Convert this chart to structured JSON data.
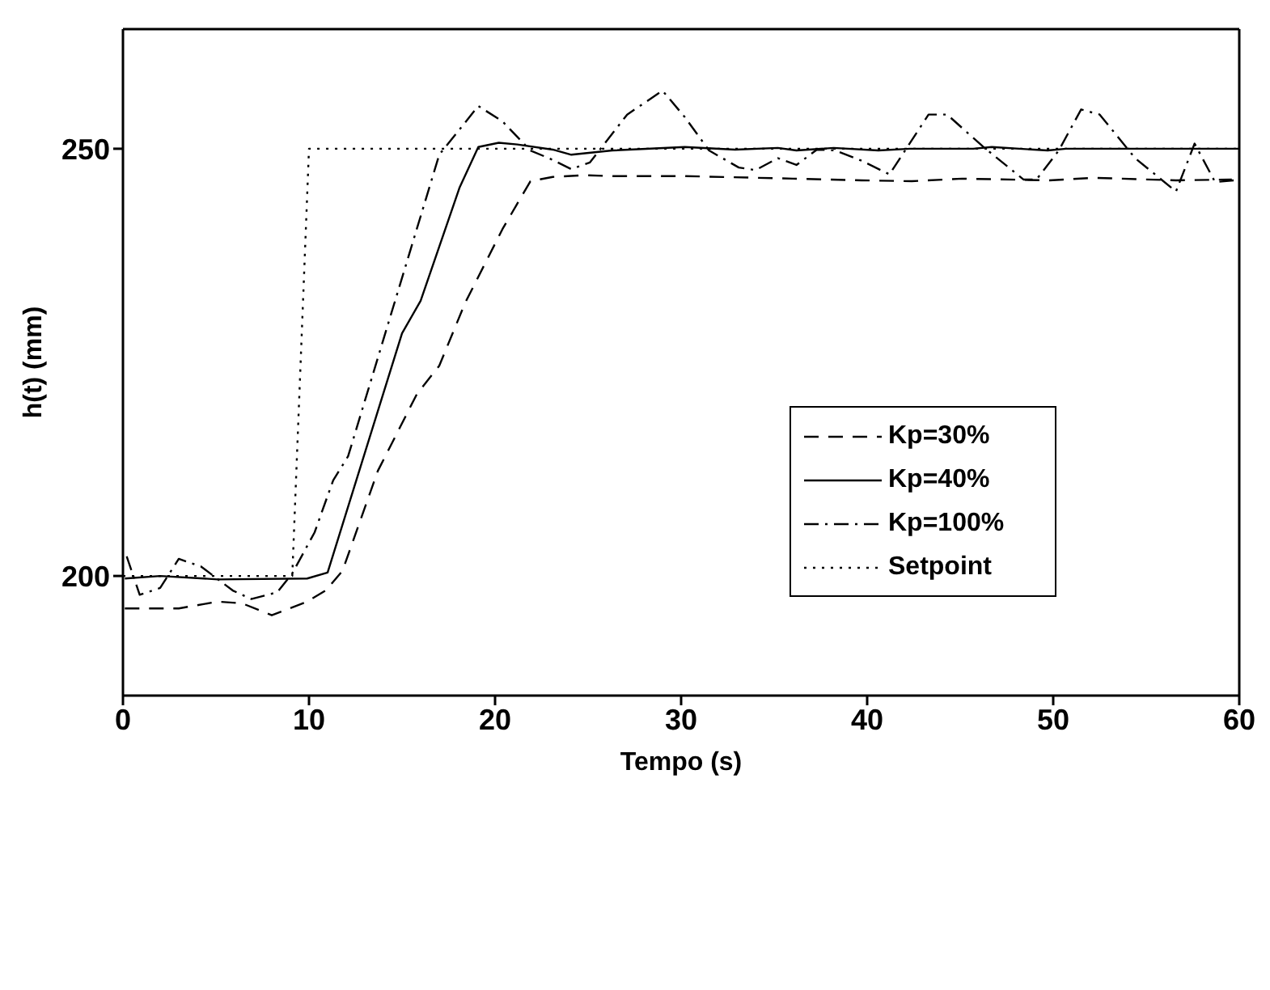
{
  "chart_data": {
    "type": "line",
    "xlabel": "Tempo (s)",
    "ylabel": "h(t) (mm)",
    "xlim": [
      0,
      60
    ],
    "xticks": [
      0,
      10,
      20,
      30,
      40,
      50,
      60
    ],
    "ylim": [
      186,
      264
    ],
    "yticks": [
      200,
      250
    ],
    "legend": "right",
    "marker": "none",
    "series": [
      {
        "name": "Kp=30%",
        "color": "#000000",
        "line_style": "dashed",
        "x": [
          0.1,
          3.0,
          5.1,
          6.4,
          8.0,
          9.9,
          10.9,
          11.8,
          13.7,
          15.8,
          17.0,
          18.4,
          20.4,
          21.9,
          23.1,
          24.8,
          26.3,
          30.2,
          36.0,
          39.7,
          42.4,
          45.1,
          49.8,
          52.2,
          56.6,
          59.6
        ],
        "values": [
          196.2,
          196.2,
          197.0,
          196.8,
          195.4,
          197.0,
          198.3,
          200.6,
          212.3,
          221.3,
          224.6,
          232.0,
          240.6,
          246.2,
          246.7,
          246.9,
          246.8,
          246.8,
          246.5,
          246.3,
          246.2,
          246.5,
          246.3,
          246.6,
          246.3,
          246.4
        ]
      },
      {
        "name": "Kp=40%",
        "color": "#000000",
        "line_style": "solid",
        "x": [
          0.1,
          2.0,
          5.1,
          9.9,
          11.0,
          15.0,
          16.0,
          18.1,
          19.1,
          20.2,
          21.2,
          23.1,
          24.1,
          26.3,
          30.2,
          32.9,
          35.2,
          36.2,
          38.2,
          40.6,
          42.3,
          45.7,
          46.7,
          49.7,
          50.7,
          55.4,
          60.0
        ],
        "values": [
          199.7,
          200.0,
          199.6,
          199.7,
          200.4,
          228.4,
          232.2,
          245.5,
          250.2,
          250.7,
          250.5,
          249.9,
          249.3,
          249.8,
          250.2,
          249.9,
          250.1,
          249.8,
          250.1,
          249.8,
          250.0,
          250.0,
          250.2,
          249.8,
          250.0,
          250.0,
          250.0
        ]
      },
      {
        "name": "Kp=100%",
        "color": "#000000",
        "line_style": "dashdot",
        "x": [
          0.2,
          0.9,
          2.0,
          3.0,
          4.2,
          5.9,
          6.9,
          8.3,
          9.1,
          10.3,
          11.3,
          12.1,
          17.0,
          19.1,
          20.4,
          21.9,
          23.1,
          24.1,
          25.1,
          27.1,
          29.0,
          30.2,
          31.5,
          33.1,
          34.0,
          35.2,
          36.2,
          37.3,
          38.3,
          39.7,
          41.2,
          43.3,
          44.3,
          46.2,
          48.4,
          49.1,
          50.3,
          51.5,
          52.5,
          54.4,
          56.6,
          57.6,
          58.7,
          59.7
        ],
        "values": [
          202.3,
          197.8,
          198.6,
          202.0,
          201.1,
          198.3,
          197.3,
          198.1,
          200.3,
          205.1,
          211.2,
          214.0,
          249.3,
          255.0,
          253.2,
          249.8,
          248.7,
          247.6,
          248.4,
          254.0,
          256.8,
          253.7,
          249.8,
          247.8,
          247.5,
          248.9,
          248.1,
          249.9,
          249.8,
          248.6,
          247.0,
          254.0,
          254.0,
          250.3,
          246.4,
          246.4,
          249.8,
          254.6,
          254.0,
          248.9,
          245.0,
          250.6,
          246.1,
          246.3
        ]
      },
      {
        "name": "Setpoint",
        "color": "#000000",
        "line_style": "dotted",
        "x": [
          0,
          9.1,
          10.0,
          60
        ],
        "values": [
          200,
          200,
          250,
          250
        ]
      }
    ]
  }
}
